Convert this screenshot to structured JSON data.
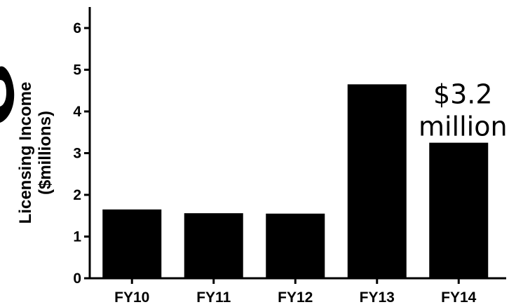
{
  "chart_data": {
    "type": "bar",
    "categories": [
      "FY10",
      "FY11",
      "FY12",
      "FY13",
      "FY14"
    ],
    "values": [
      1.65,
      1.56,
      1.55,
      4.65,
      3.25
    ],
    "title": "",
    "xlabel": "",
    "ylabel_line1": "Licensing Income",
    "ylabel_line2": "($millions)",
    "ylim": [
      0,
      6
    ],
    "yticks": [
      "0",
      "1",
      "2",
      "3",
      "4",
      "5",
      "6"
    ],
    "grid": false,
    "bar_color": "#000000",
    "annotation": {
      "line1": "$3.2",
      "line2": "million",
      "category": "FY14"
    }
  }
}
